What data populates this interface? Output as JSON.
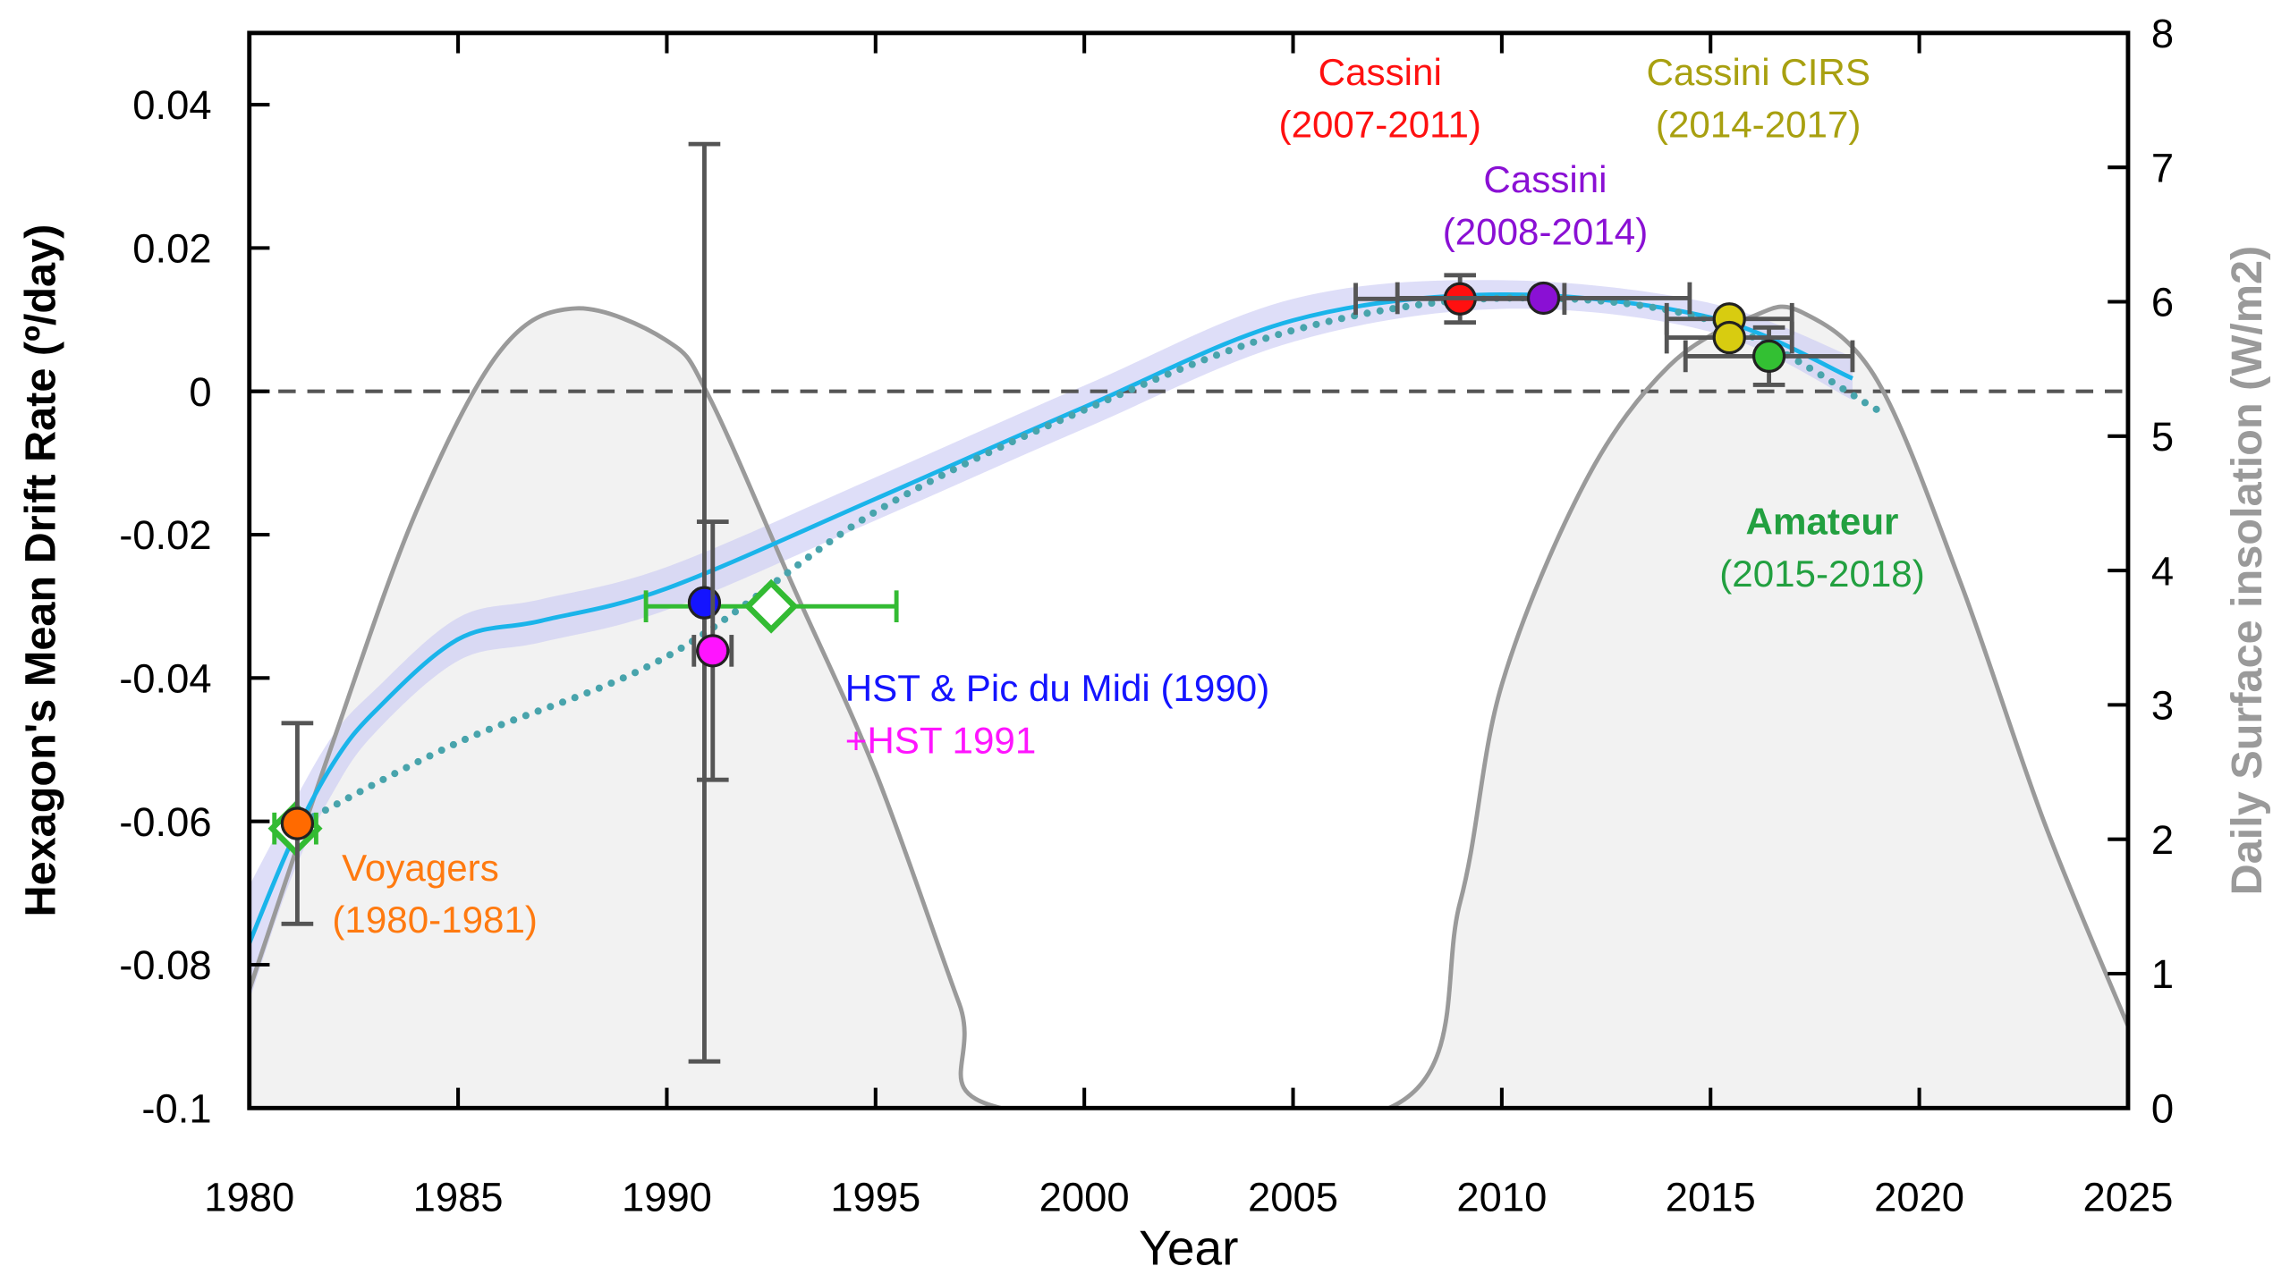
{
  "chart_data": {
    "type": "scatter",
    "xlabel": "Year",
    "ylabel": "Hexagon's Mean Drift Rate (º/day)",
    "y2label": "Daily Surface insolation (W/m2)",
    "xlim": [
      1980,
      2025
    ],
    "xticks": [
      1980,
      1985,
      1990,
      1995,
      2000,
      2005,
      2010,
      2015,
      2020,
      2025
    ],
    "ylim": [
      -0.1,
      0.05
    ],
    "yticks": [
      -0.1,
      -0.08,
      -0.06,
      -0.04,
      -0.02,
      0,
      0.02,
      0.04
    ],
    "y2lim": [
      0,
      8
    ],
    "y2ticks": [
      0,
      1,
      2,
      3,
      4,
      5,
      6,
      7,
      8
    ],
    "hline": 0,
    "band": {
      "color": "#c8c8f4",
      "x": [
        1980,
        1981,
        1982,
        1983,
        1985,
        1987,
        1990,
        1995,
        2000,
        2005,
        2010,
        2015,
        2018.4
      ],
      "upper": [
        -0.069,
        -0.058,
        -0.048,
        -0.0417,
        -0.0316,
        -0.029,
        -0.0245,
        -0.012,
        0.0008,
        0.0129,
        0.0155,
        0.0123,
        0.0048
      ],
      "lower": [
        -0.085,
        -0.068,
        -0.056,
        -0.0477,
        -0.0376,
        -0.035,
        -0.0305,
        -0.018,
        -0.0052,
        0.0069,
        0.0115,
        0.0083,
        -0.0012
      ]
    },
    "curves": [
      {
        "color": "#9a9a9a",
        "axis": "y2",
        "fill": "#f2f2f2",
        "x": [
          1980,
          1982,
          1984,
          1986,
          1987.8,
          1990,
          1991,
          1993,
          1995,
          1997,
          1998,
          2007.3,
          2009,
          2010,
          2012,
          2014,
          2016,
          2017.2,
          2019,
          2021,
          2023,
          2025
        ],
        "values": [
          0.88,
          2.72,
          4.44,
          5.63,
          5.95,
          5.71,
          5.3,
          3.9,
          2.5,
          0.78,
          0,
          0,
          1.53,
          3.15,
          4.66,
          5.52,
          5.89,
          5.92,
          5.41,
          3.9,
          2.12,
          0.61
        ]
      },
      {
        "color": "#1ab4ea",
        "x": [
          1980,
          1981,
          1982,
          1983,
          1985,
          1987,
          1990,
          1995,
          2000,
          2005,
          2010,
          2015,
          2018.4
        ],
        "values": [
          -0.077,
          -0.063,
          -0.052,
          -0.0447,
          -0.0346,
          -0.032,
          -0.0275,
          -0.015,
          -0.0022,
          0.0099,
          0.0135,
          0.0103,
          0.0018
        ]
      },
      {
        "color": "#48a4ac",
        "dotted": true,
        "x": [
          1981,
          1985,
          1990,
          1995,
          2000,
          2005,
          2010,
          2015,
          2019
        ],
        "values": [
          -0.061,
          -0.049,
          -0.037,
          -0.0168,
          -0.0026,
          0.0085,
          0.013,
          0.0099,
          -0.0026
        ]
      }
    ],
    "series": [
      {
        "color": "#ffffff",
        "edge": "#33bb33",
        "marker": "diamond",
        "errcolor": "#33bb33",
        "x": [
          1981.1,
          1992.5
        ],
        "values": [
          -0.061,
          -0.03
        ],
        "xerr": [
          0.5,
          3.0
        ]
      },
      {
        "color": "#ff6a00",
        "marker": "circle",
        "errcolor": "#555555",
        "x": [
          1981.15
        ],
        "values": [
          -0.0603
        ],
        "yerr": [
          0.014
        ]
      },
      {
        "color": "#1414ff",
        "marker": "circle",
        "errcolor": "#555555",
        "x": [
          1990.9
        ],
        "values": [
          -0.0295
        ],
        "yerr": [
          0.064
        ]
      },
      {
        "color": "#ff14ff",
        "marker": "circle",
        "errcolor": "#555555",
        "x": [
          1991.1
        ],
        "values": [
          -0.0362
        ],
        "yerr": [
          0.018
        ],
        "xerr": [
          0.45
        ]
      },
      {
        "color": "#ff1010",
        "marker": "circle",
        "errcolor": "#555555",
        "x": [
          2009.0
        ],
        "values": [
          0.0129
        ],
        "yerr": [
          0.0033
        ],
        "xerr": [
          2.5
        ]
      },
      {
        "color": "#8a10d4",
        "marker": "circle",
        "errcolor": "#555555",
        "x": [
          2011.0
        ],
        "values": [
          0.013
        ],
        "xerr": [
          3.5
        ]
      },
      {
        "color": "#d8cc10",
        "marker": "circle",
        "errcolor": "#555555",
        "x": [
          2015.45,
          2015.45
        ],
        "values": [
          0.0101,
          0.0075
        ],
        "xerr": [
          1.5,
          1.5
        ]
      },
      {
        "color": "#33c033",
        "marker": "circle",
        "errcolor": "#555555",
        "x": [
          2016.4
        ],
        "values": [
          0.0049
        ],
        "yerr": [
          0.004
        ],
        "xerr": [
          2.0
        ]
      }
    ],
    "annotations": [
      {
        "lines": [
          "Cassini",
          "(2007-2011)"
        ],
        "color": "#ff1010"
      },
      {
        "lines": [
          "Cassini",
          "(2008-2014)"
        ],
        "color": "#8a10d4"
      },
      {
        "lines": [
          "Cassini CIRS",
          "(2014-2017)"
        ],
        "color": "#a8a010"
      },
      {
        "lines": [
          "Amateur",
          "(2015-2018)"
        ],
        "color": "#22a040",
        "bold": true
      },
      {
        "lines": [
          "HST & Pic du Midi (1990)",
          "+HST 1991"
        ],
        "colors": [
          "#1414ff",
          "#ff14ff"
        ]
      },
      {
        "lines": [
          "Voyagers",
          "(1980-1981)"
        ],
        "color": "#ff7a10"
      }
    ]
  }
}
